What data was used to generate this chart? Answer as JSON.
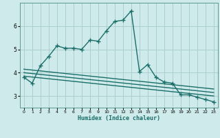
{
  "xlabel": "Humidex (Indice chaleur)",
  "ylabel": "",
  "bg_color": "#ceeaea",
  "line_color": "#1a6e6a",
  "grid_color": "#aacece",
  "xlim": [
    -0.5,
    23.5
  ],
  "ylim": [
    2.5,
    7.0
  ],
  "yticks": [
    3,
    4,
    5,
    6
  ],
  "xticks": [
    0,
    1,
    2,
    3,
    4,
    5,
    6,
    7,
    8,
    9,
    10,
    11,
    12,
    13,
    14,
    15,
    16,
    17,
    18,
    19,
    20,
    21,
    22,
    23
  ],
  "series": [
    {
      "x": [
        0,
        1,
        2,
        3,
        4,
        5,
        6,
        7,
        8,
        9,
        10,
        11,
        12,
        13,
        14,
        15,
        16,
        17,
        18,
        19,
        20,
        21,
        22,
        23
      ],
      "y": [
        3.8,
        3.55,
        4.3,
        4.7,
        5.15,
        5.05,
        5.05,
        5.0,
        5.4,
        5.35,
        5.8,
        6.2,
        6.25,
        6.65,
        4.05,
        4.35,
        3.8,
        3.6,
        3.55,
        3.05,
        3.05,
        2.95,
        2.85,
        2.75
      ],
      "marker": "+",
      "markersize": 4,
      "linewidth": 1.0,
      "has_markers": true
    },
    {
      "x": [
        0,
        23
      ],
      "y": [
        4.15,
        3.3
      ],
      "marker": null,
      "markersize": 0,
      "linewidth": 1.0,
      "has_markers": false
    },
    {
      "x": [
        0,
        23
      ],
      "y": [
        4.0,
        3.15
      ],
      "marker": null,
      "markersize": 0,
      "linewidth": 1.0,
      "has_markers": false
    },
    {
      "x": [
        0,
        23
      ],
      "y": [
        3.85,
        3.0
      ],
      "marker": null,
      "markersize": 0,
      "linewidth": 1.0,
      "has_markers": false
    }
  ]
}
